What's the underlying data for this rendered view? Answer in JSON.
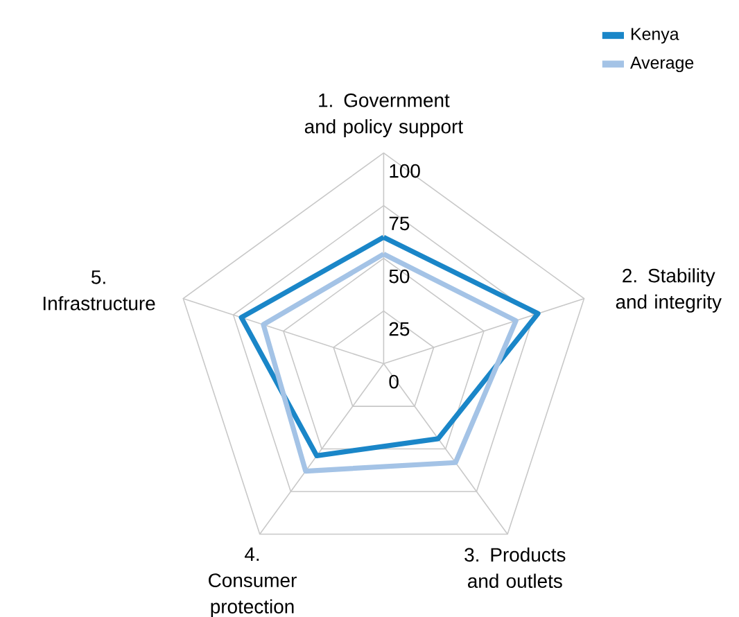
{
  "chart_data": {
    "type": "radar",
    "categories": [
      "1. Government and policy support",
      "2. Stability and integrity",
      "3. Products and outlets",
      "4. Consumer protection",
      "5. Infrastructure"
    ],
    "series": [
      {
        "name": "Kenya",
        "color": "#1a86c8",
        "values": [
          60,
          77,
          44,
          54,
          71
        ]
      },
      {
        "name": "Average",
        "color": "#a4c3e6",
        "values": [
          52,
          66,
          58,
          63,
          60
        ]
      }
    ],
    "ylim": [
      0,
      100
    ],
    "yticks": [
      0,
      25,
      50,
      75,
      100
    ],
    "grid": true,
    "legend": "top right"
  }
}
